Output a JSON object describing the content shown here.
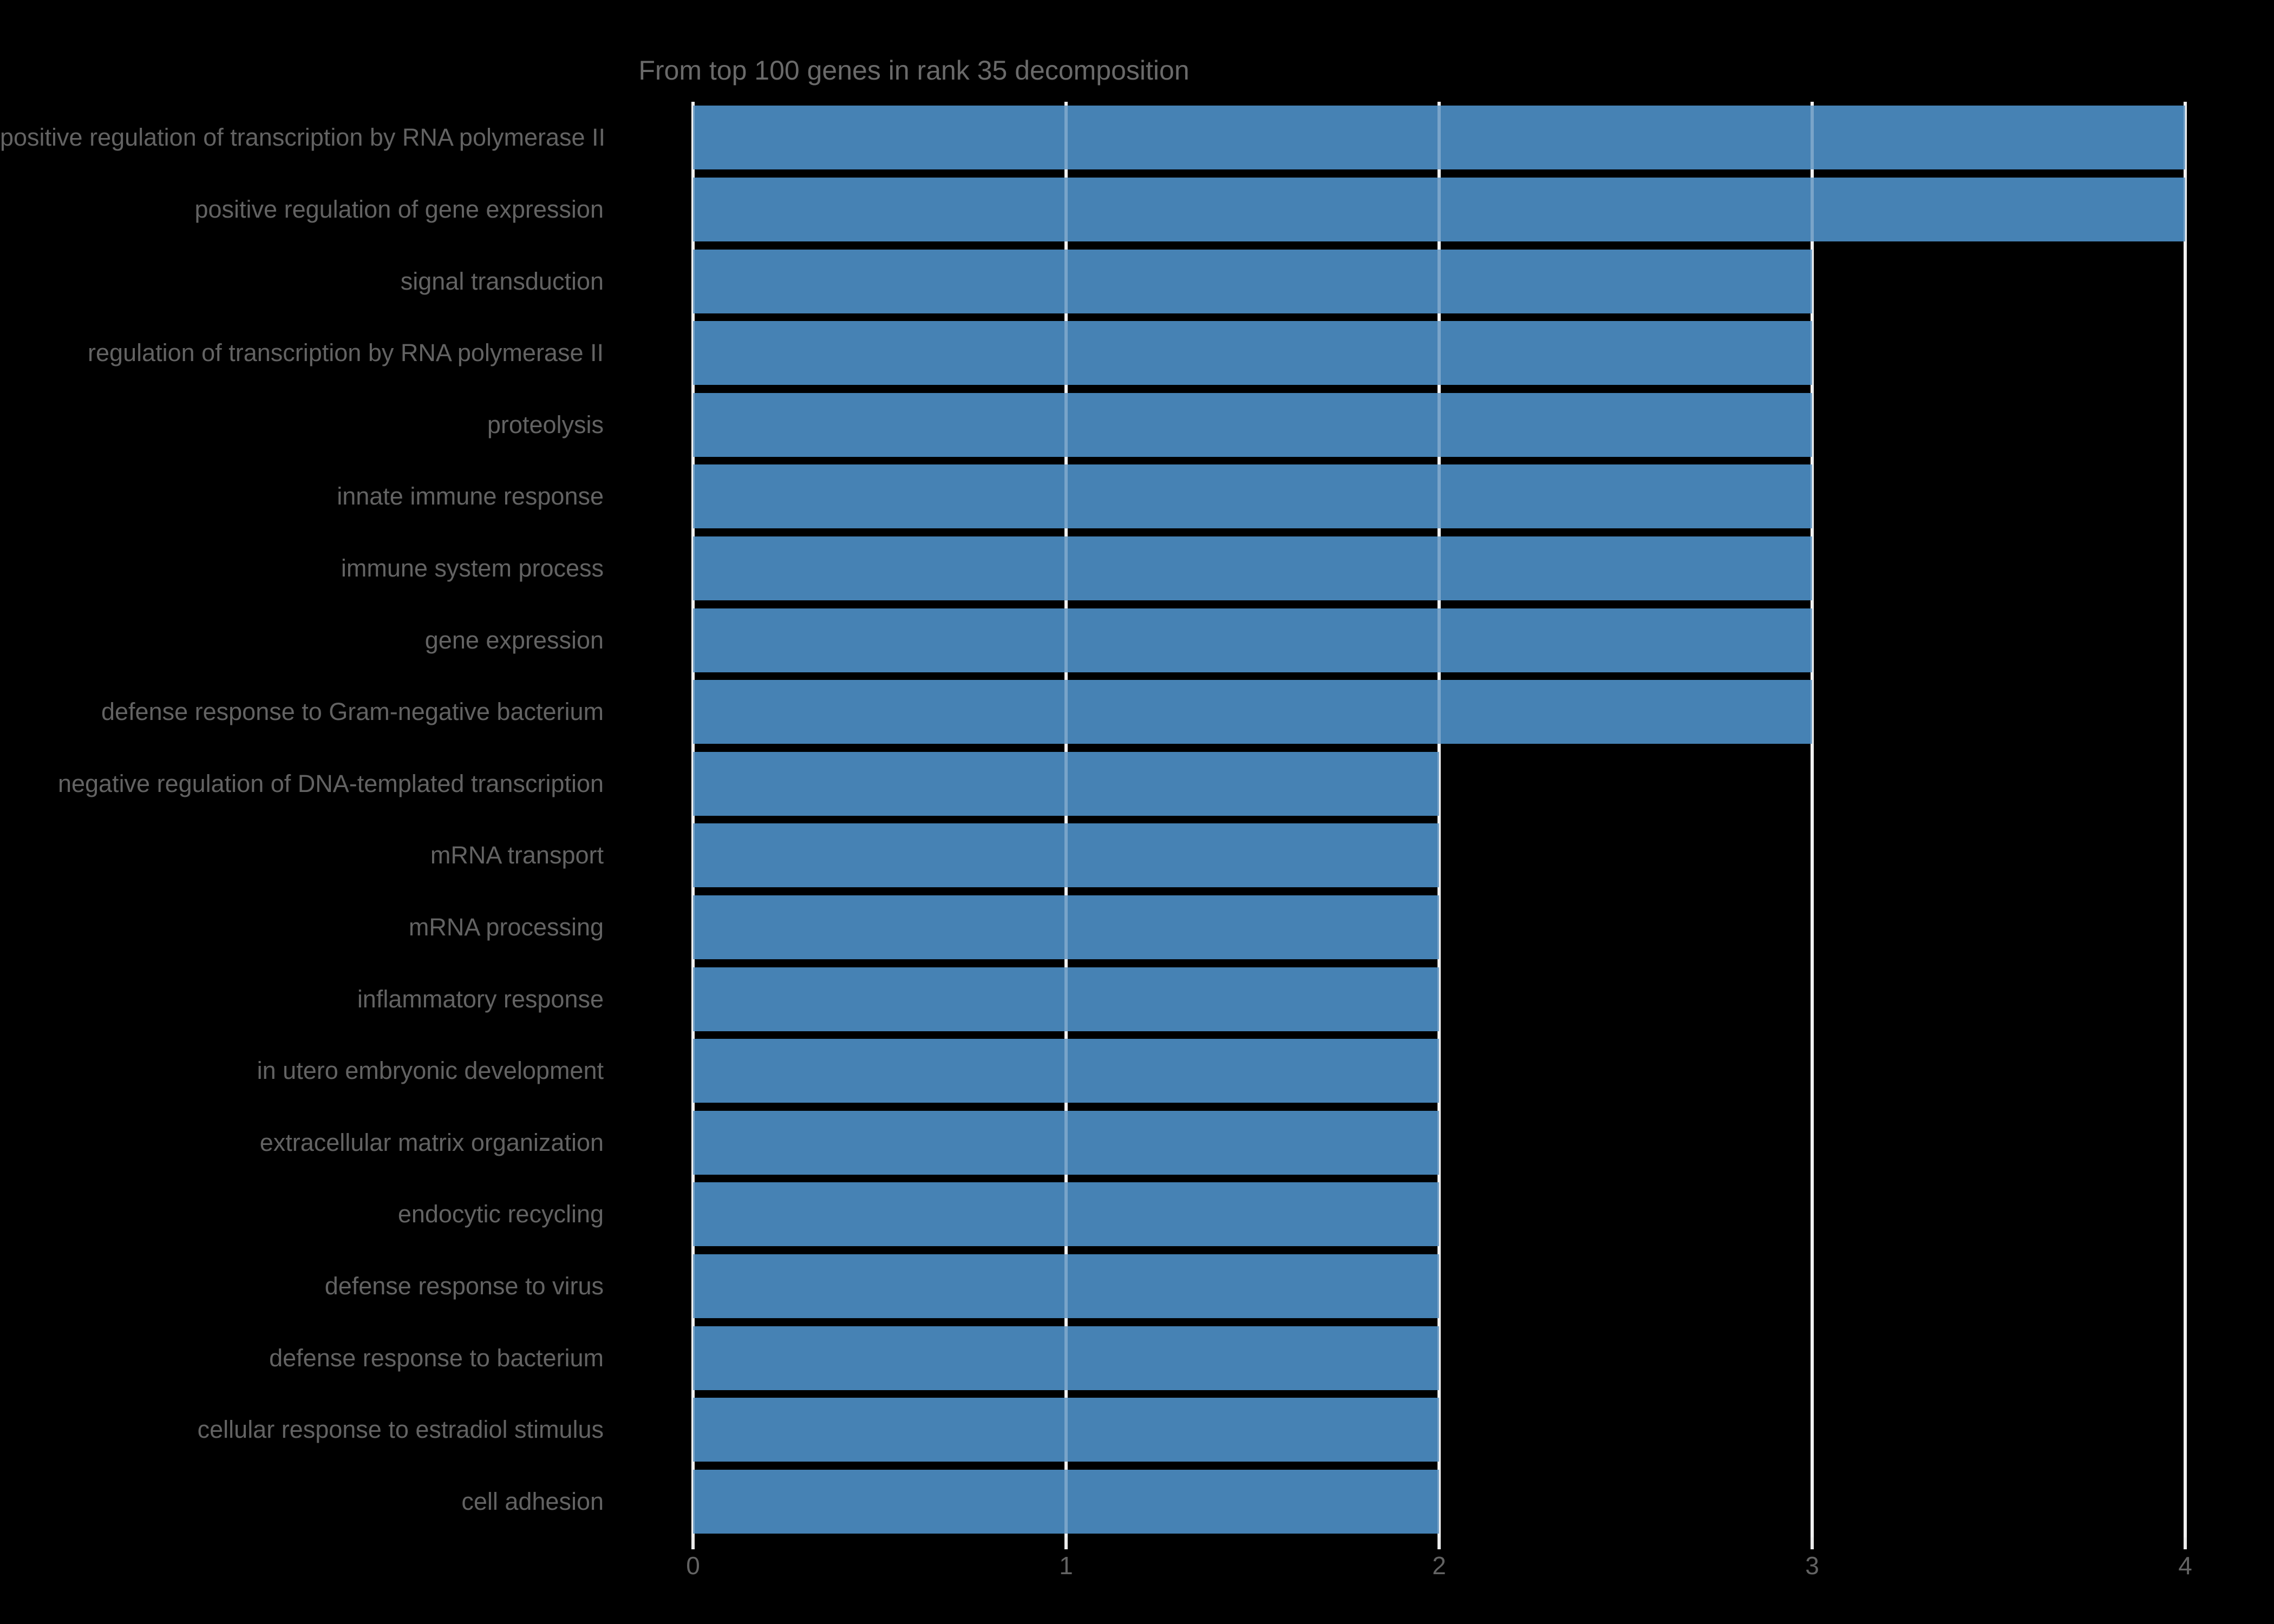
{
  "title": "From top 100 genes in rank 35 decomposition",
  "chart_data": {
    "type": "bar",
    "orientation": "horizontal",
    "title": "From top 100 genes in rank 35 decomposition",
    "xlabel": "",
    "ylabel": "",
    "categories": [
      "positive regulation of transcription by RNA polymerase II",
      "positive regulation of gene expression",
      "signal transduction",
      "regulation of transcription by RNA polymerase II",
      "proteolysis",
      "innate immune response",
      "immune system process",
      "gene expression",
      "defense response to Gram-negative bacterium",
      "negative regulation of DNA-templated transcription",
      "mRNA transport",
      "mRNA processing",
      "inflammatory response",
      "in utero embryonic development",
      "extracellular matrix organization",
      "endocytic recycling",
      "defense response to virus",
      "defense response to bacterium",
      "cellular response to estradiol stimulus",
      "cell adhesion"
    ],
    "values": [
      4,
      4,
      3,
      3,
      3,
      3,
      3,
      3,
      3,
      2,
      2,
      2,
      2,
      2,
      2,
      2,
      2,
      2,
      2,
      2
    ],
    "xlim": [
      0,
      4
    ],
    "xticks": [
      0,
      1,
      2,
      3,
      4
    ],
    "grid": true,
    "legend": false,
    "colors": {
      "bar": "#4682b4",
      "background": "#000000",
      "gridline": "#ebebeb",
      "text": "#636363"
    }
  }
}
